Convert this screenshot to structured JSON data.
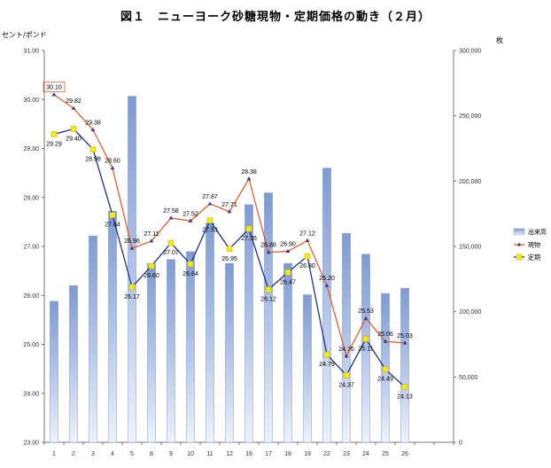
{
  "title": "図１　ニューヨーク砂糖現物・定期価格の動き（２月）",
  "chart_data": {
    "type": "bar",
    "title": "図１　ニューヨーク砂糖現物・定期価格の動き（２月）",
    "categories": [
      "1",
      "2",
      "3",
      "4",
      "5",
      "8",
      "9",
      "10",
      "11",
      "12",
      "16",
      "17",
      "18",
      "19",
      "22",
      "23",
      "24",
      "25",
      "26"
    ],
    "y_left": {
      "label": "セント/ポンド",
      "min": 23.0,
      "max": 31.0,
      "ticks": [
        "23.00",
        "24.00",
        "25.00",
        "26.00",
        "27.00",
        "28.00",
        "29.00",
        "30.00",
        "31.00"
      ]
    },
    "y_right": {
      "label": "枚",
      "min": 0,
      "max": 300000,
      "ticks": [
        "0",
        "50,000",
        "100,000",
        "150,000",
        "200,000",
        "250,000",
        "300,000"
      ]
    },
    "grid": false,
    "legend_position": "right",
    "series": [
      {
        "name": "出来高",
        "type": "bar",
        "axis": "right",
        "color": "#9db3d9",
        "values": [
          108000,
          120000,
          158000,
          177000,
          265000,
          137000,
          140000,
          146000,
          168000,
          137000,
          182000,
          191000,
          137000,
          113000,
          210000,
          160000,
          144000,
          114000,
          118000
        ]
      },
      {
        "name": "現物",
        "type": "line",
        "axis": "left",
        "color": "#e0602a",
        "values": [
          30.1,
          29.82,
          29.38,
          28.6,
          26.96,
          27.11,
          27.58,
          27.52,
          27.87,
          27.71,
          28.38,
          26.88,
          26.9,
          27.12,
          26.2,
          24.76,
          25.53,
          25.06,
          25.03
        ]
      },
      {
        "name": "定期",
        "type": "line",
        "axis": "left",
        "color": "#1f2f8f",
        "marker_color": "#f5ea15",
        "values": [
          29.29,
          29.4,
          28.98,
          27.64,
          26.17,
          26.6,
          27.07,
          26.64,
          27.53,
          26.95,
          27.36,
          26.12,
          26.47,
          26.8,
          24.79,
          24.37,
          25.11,
          24.49,
          24.13
        ]
      }
    ],
    "point_labels": {
      "現物": [
        "30.10",
        "29.82",
        "29.38",
        "28.60",
        "26.96",
        "27.11",
        "27.58",
        "27.52",
        "27.87",
        "27.71",
        "28.38",
        "26.88",
        "26.90",
        "27.12",
        "26.20",
        "24.76",
        "25.53",
        "25.06",
        "25.03"
      ],
      "定期": [
        "29.29",
        "29.40",
        "28.98",
        "27.64",
        "26.17",
        "26.60",
        "27.07",
        "26.64",
        "27.53",
        "26.95",
        "27.36",
        "26.12",
        "26.47",
        "26.80",
        "24.79",
        "24.37",
        "25.11",
        "24.49",
        "24.13"
      ]
    },
    "highlighted_label": "30.10"
  }
}
